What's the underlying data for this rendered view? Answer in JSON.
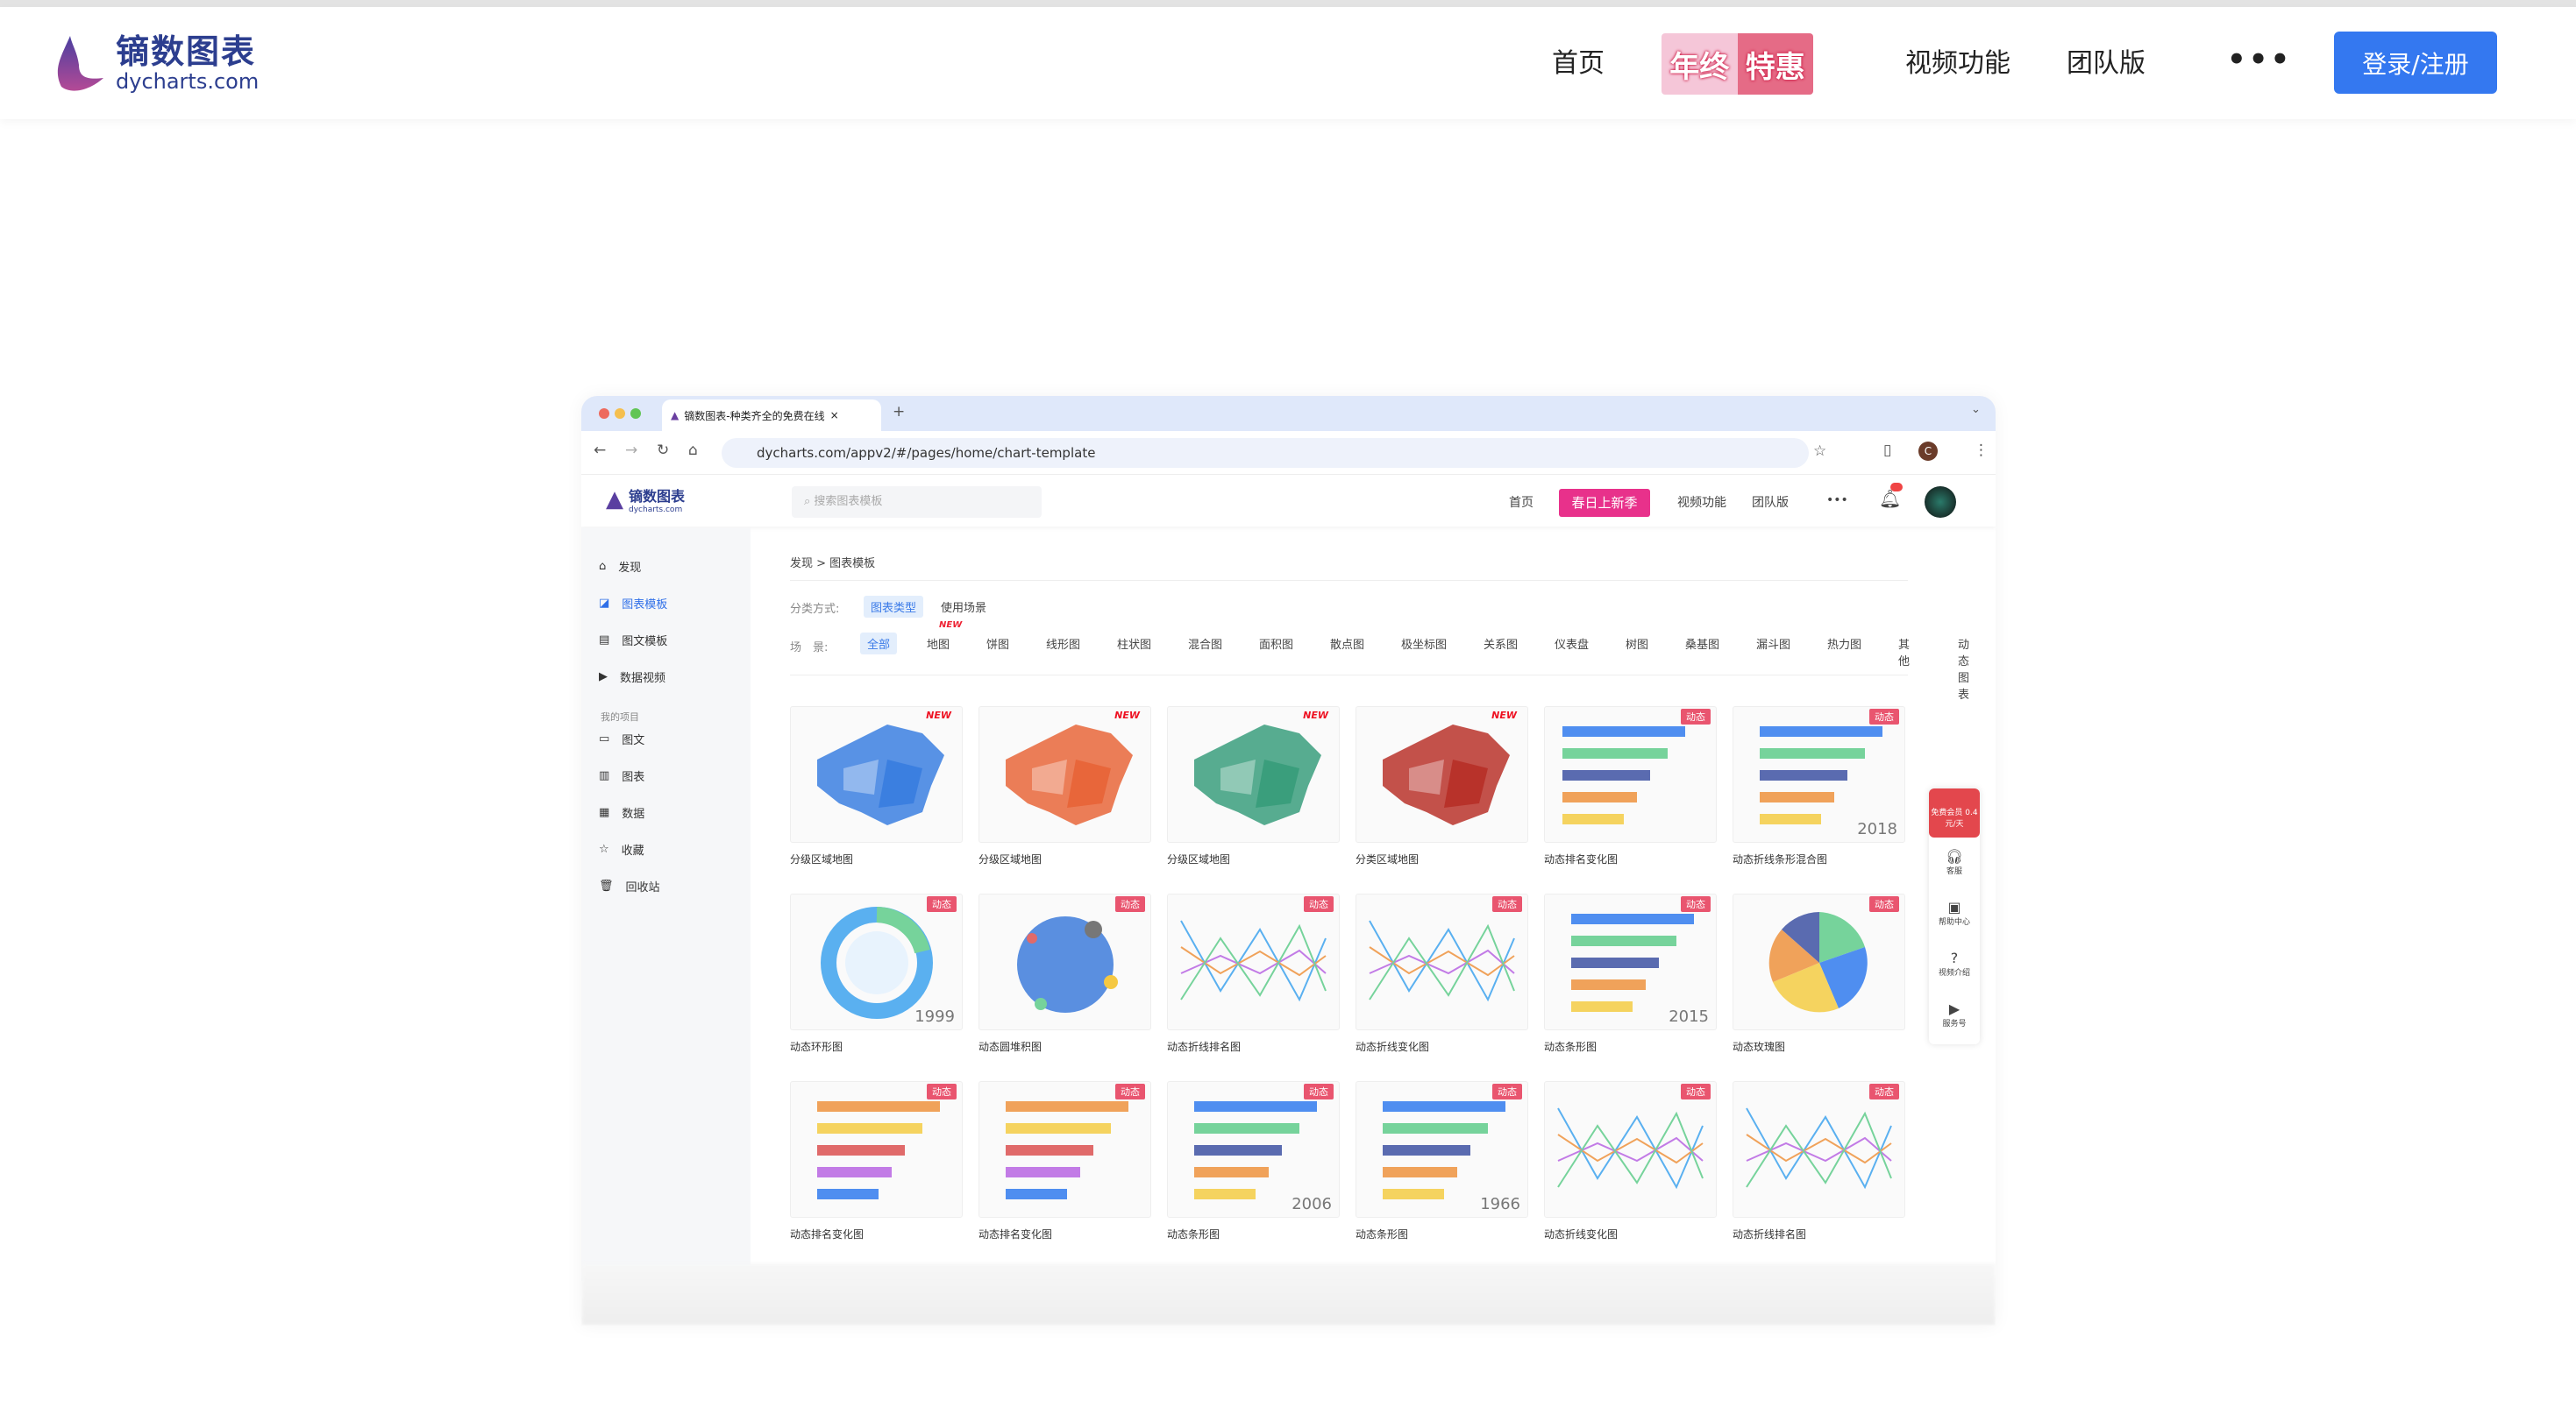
{
  "header": {
    "logo_cn": "镝数图表",
    "logo_en": "dycharts.com",
    "nav": [
      "首页",
      "视频功能",
      "团队版"
    ],
    "promo": [
      "年终",
      "特惠"
    ],
    "more": "•••",
    "login": "登录/注册"
  },
  "browser": {
    "tab_title": "镝数图表-种类齐全的免费在线",
    "url": "dycharts.com/appv2/#/pages/home/chart-template",
    "new_tab": "+",
    "close": "×",
    "avatar_letter": "C"
  },
  "app": {
    "logo_cn": "镝数图表",
    "logo_en": "dycharts.com",
    "search_placeholder": "搜索图表模板",
    "nav": [
      "首页",
      "视频功能",
      "团队版"
    ],
    "promo": "春日上新季",
    "more": "•••"
  },
  "sidebar": {
    "items": [
      {
        "label": "发现",
        "icon": "home-icon"
      },
      {
        "label": "图表模板",
        "icon": "chart-icon",
        "active": true
      },
      {
        "label": "图文模板",
        "icon": "doc-icon"
      },
      {
        "label": "数据视频",
        "icon": "video-icon"
      }
    ],
    "section": "我的项目",
    "project_items": [
      {
        "label": "图文",
        "icon": "folder-icon"
      },
      {
        "label": "图表",
        "icon": "bar-chart-icon"
      },
      {
        "label": "数据",
        "icon": "table-icon"
      },
      {
        "label": "收藏",
        "icon": "star-icon"
      },
      {
        "label": "回收站",
        "icon": "trash-icon"
      }
    ]
  },
  "main": {
    "breadcrumb": "发现 > 图表模板",
    "sort_label": "分类方式:",
    "sort_options": [
      "图表类型",
      "使用场景"
    ],
    "scene_label": "场　景:",
    "categories": [
      "全部",
      "地图",
      "饼图",
      "线形图",
      "柱状图",
      "混合图",
      "面积图",
      "散点图",
      "极坐标图",
      "关系图",
      "仪表盘",
      "树图",
      "桑基图",
      "漏斗图",
      "热力图",
      "其他",
      "动态图表"
    ],
    "new_tag": "NEW",
    "cards": [
      {
        "label": "分级区域地图",
        "badge": "NEW",
        "kind": "map",
        "color": "#3b7fe0"
      },
      {
        "label": "分级区域地图",
        "badge": "NEW",
        "kind": "map",
        "color": "#e8663a"
      },
      {
        "label": "分级区域地图",
        "badge": "NEW",
        "kind": "map",
        "color": "#3a9e7c"
      },
      {
        "label": "分类区域地图",
        "badge": "NEW",
        "kind": "map",
        "color": "#b8322a"
      },
      {
        "label": "动态排名变化图",
        "badge": "动态",
        "kind": "hbar"
      },
      {
        "label": "动态折线条形混合图",
        "badge": "动态",
        "kind": "hbar2",
        "year": "2018"
      },
      {
        "label": "动态环形图",
        "badge": "动态",
        "kind": "ring",
        "year": "1999"
      },
      {
        "label": "动态圆堆积图",
        "badge": "动态",
        "kind": "bubble"
      },
      {
        "label": "动态折线排名图",
        "badge": "动态",
        "kind": "lines"
      },
      {
        "label": "动态折线变化图",
        "badge": "动态",
        "kind": "lines2"
      },
      {
        "label": "动态条形图",
        "badge": "动态",
        "kind": "hbar2",
        "year": "2015"
      },
      {
        "label": "动态玫瑰图",
        "badge": "动态",
        "kind": "pie"
      },
      {
        "label": "动态排名变化图",
        "badge": "动态",
        "kind": "hbar3"
      },
      {
        "label": "动态排名变化图",
        "badge": "动态",
        "kind": "hbar3"
      },
      {
        "label": "动态条形图",
        "badge": "动态",
        "kind": "hbar4",
        "year": "2006"
      },
      {
        "label": "动态条形图",
        "badge": "动态",
        "kind": "hbar5",
        "year": "1966"
      },
      {
        "label": "动态折线变化图",
        "badge": "动态",
        "kind": "lines2"
      },
      {
        "label": "动态折线排名图",
        "badge": "动态",
        "kind": "lines"
      }
    ]
  },
  "float_bar": {
    "vip": "免费会员 0.4元/天",
    "items": [
      "客服",
      "帮助中心",
      "视频介绍",
      "服务号"
    ]
  }
}
